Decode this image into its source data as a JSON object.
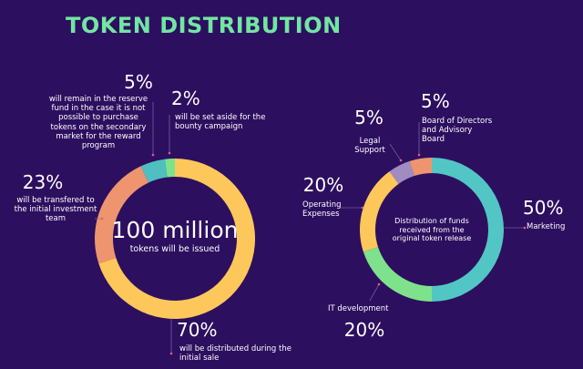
{
  "title": "TOKEN DISTRIBUTION",
  "chart_data": [
    {
      "type": "pie",
      "center_label": "100 million",
      "center_sublabel": "tokens will be issued",
      "categories": [
        "will be distributed during the initial sale",
        "will be transfered to the initial investment team",
        "will remain in the reserve fund in the case it is not possible to purchase tokens on the secondary market for the reward program",
        "will be set aside for the bounty campaign"
      ],
      "values": [
        70,
        23,
        5,
        2
      ],
      "value_labels": [
        "70%",
        "23%",
        "5%",
        "2%"
      ],
      "colors": [
        "#fdc75b",
        "#ee956f",
        "#4fbfc2",
        "#7ee28c"
      ]
    },
    {
      "type": "pie",
      "center_sublabel": "Distribution of funds received from the original token release",
      "categories": [
        "Marketing",
        "IT development",
        "Operating Expenses",
        "Legal Support",
        "Board of Directors and Advisory Board"
      ],
      "values": [
        50,
        20,
        20,
        5,
        5
      ],
      "value_labels": [
        "50%",
        "20%",
        "20%",
        "5%",
        "5%"
      ],
      "colors": [
        "#52c6c4",
        "#7ee28c",
        "#fdc75b",
        "#a18cc2",
        "#ee956f"
      ]
    }
  ]
}
